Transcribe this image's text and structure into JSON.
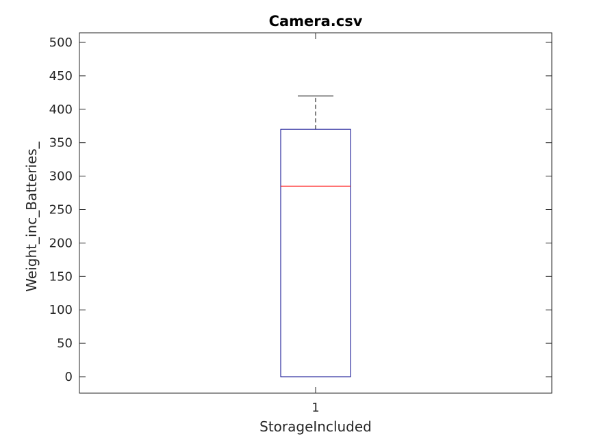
{
  "chart_data": {
    "type": "box",
    "title": "Camera.csv",
    "xlabel": "StorageIncluded",
    "ylabel": "Weight_inc_Batteries_",
    "categories": [
      "1"
    ],
    "ylim": [
      -25,
      515
    ],
    "yticks": [
      0,
      50,
      100,
      150,
      200,
      250,
      300,
      350,
      400,
      450,
      500
    ],
    "boxes": [
      {
        "category": "1",
        "whisker_low": 0,
        "q1": 0,
        "median": 285,
        "q3": 370,
        "whisker_high": 420
      }
    ],
    "grid": false,
    "colors": {
      "box": "#00008b",
      "median": "#ff0000",
      "whisker": "#000000",
      "axes": "#262626"
    }
  }
}
